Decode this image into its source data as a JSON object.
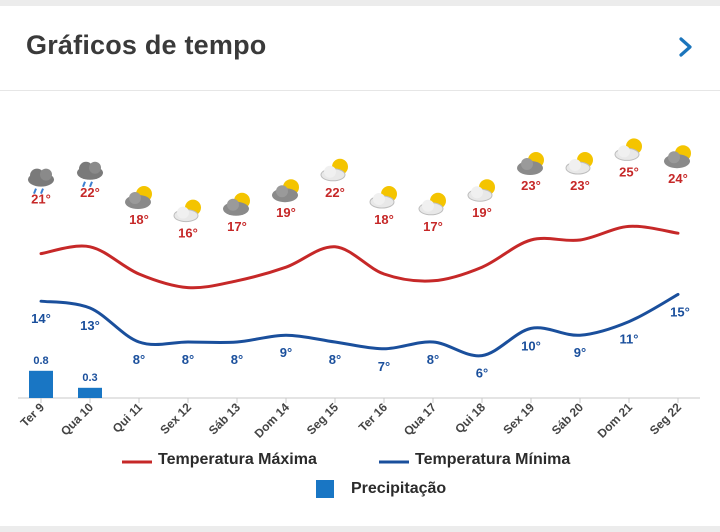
{
  "header": {
    "title": "Gráficos de tempo"
  },
  "colors": {
    "max": "#c62828",
    "min": "#1a4f9c",
    "precip": "#1976c4",
    "axis": "#c8c8c8"
  },
  "icons": [
    "rain-cloud-icon",
    "rain-cloud-icon",
    "partly-cloudy-icon",
    "partly-sunny-icon",
    "partly-cloudy-icon",
    "partly-cloudy-icon",
    "partly-sunny-icon",
    "partly-sunny-icon",
    "partly-sunny-icon",
    "partly-sunny-icon",
    "partly-cloudy-icon",
    "partly-sunny-icon",
    "partly-sunny-icon",
    "partly-cloudy-icon"
  ],
  "legend": {
    "max": "Temperatura Máxima",
    "min": "Temperatura Mínima",
    "precip": "Precipitação"
  },
  "chart_data": {
    "type": "line",
    "categories": [
      "Ter 9",
      "Qua 10",
      "Qui 11",
      "Sex 12",
      "Sáb 13",
      "Dom 14",
      "Seg 15",
      "Ter 16",
      "Qua 17",
      "Qui 18",
      "Sex 19",
      "Sáb 20",
      "Dom 21",
      "Seg 22"
    ],
    "series": [
      {
        "name": "Temperatura Máxima",
        "values": [
          21,
          22,
          18,
          16,
          17,
          19,
          22,
          18,
          17,
          19,
          23,
          23,
          25,
          24
        ],
        "labels": [
          "21°",
          "22°",
          "18°",
          "16°",
          "17°",
          "19°",
          "22°",
          "18°",
          "17°",
          "19°",
          "23°",
          "23°",
          "25°",
          "24°"
        ]
      },
      {
        "name": "Temperatura Mínima",
        "values": [
          14,
          13,
          8,
          8,
          8,
          9,
          8,
          7,
          8,
          6,
          10,
          9,
          11,
          15
        ],
        "labels": [
          "14°",
          "13°",
          "8°",
          "8°",
          "8°",
          "9°",
          "8°",
          "7°",
          "8°",
          "6°",
          "10°",
          "9°",
          "11°",
          "15°"
        ]
      },
      {
        "name": "Precipitação",
        "type": "bar",
        "values": [
          0.8,
          0.3,
          0,
          0,
          0,
          0,
          0,
          0,
          0,
          0,
          0,
          0,
          0,
          0
        ],
        "labels": [
          "0.8",
          "0.3"
        ]
      }
    ],
    "legend_position": "bottom",
    "grid": false
  }
}
